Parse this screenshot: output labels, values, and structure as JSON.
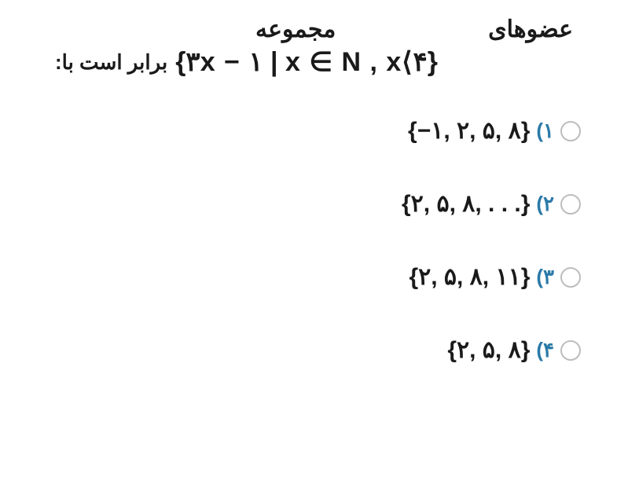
{
  "colors": {
    "background": "#ffffff",
    "text": "#1a1a1a",
    "option_number": "#2a7aa8",
    "radio_border": "#bdbdbd"
  },
  "typography": {
    "question_fontsize": 30,
    "expression_fontsize": 34,
    "option_text_fontsize": 30,
    "option_number_fontsize": 26,
    "weight": "700"
  },
  "question": {
    "word_members": "عضوهای",
    "word_set": "مجموعه",
    "set_expression": "{۳x − ۱  |  x ∈ N , x⟨۴}",
    "trailing": "برابر است با:"
  },
  "options": [
    {
      "num": "(۱",
      "text": "{−۱, ۲, ۵, ۸}"
    },
    {
      "num": "(۲",
      "text": "{۲, ۵, ۸, . . .}"
    },
    {
      "num": "(۳",
      "text": "{۲, ۵, ۸, ۱۱}"
    },
    {
      "num": "(۴",
      "text": "{۲, ۵, ۸}"
    }
  ]
}
